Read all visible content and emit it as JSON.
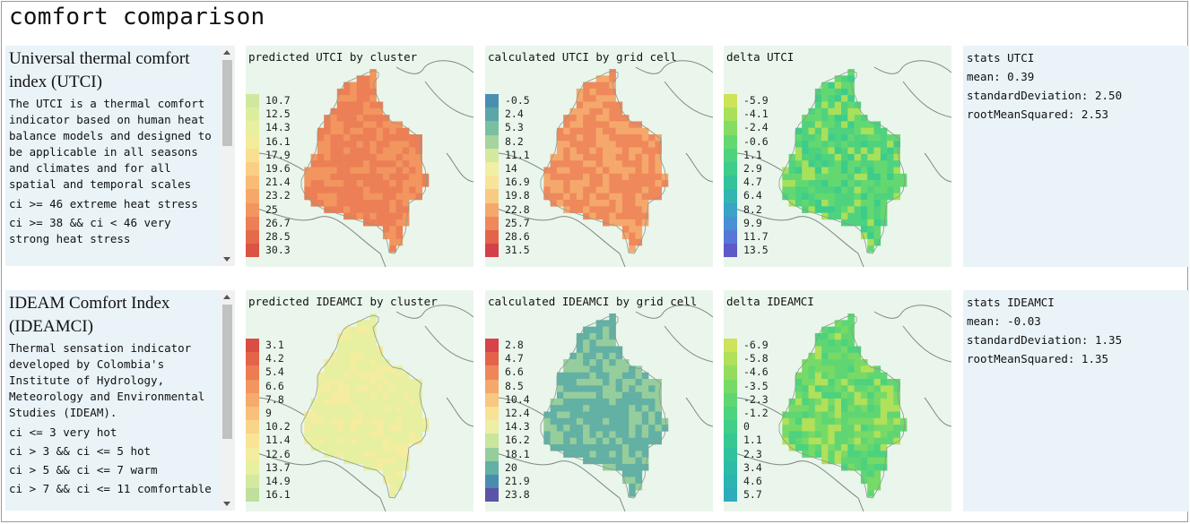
{
  "page_title": "comfort comparison",
  "rows": [
    {
      "info": {
        "heading": "Universal thermal comfort index (UTCI)",
        "description": "The UTCI is a thermal comfort indicator based on human heat balance models and designed to be applicable in all seasons and climates and for all spatial and temporal scales",
        "categories": [
          "ci >= 46 extreme heat stress",
          "ci >= 38 && ci < 46 very strong heat stress"
        ]
      },
      "panels": [
        {
          "title": "predicted UTCI by cluster",
          "kind": "pred",
          "legend": [
            {
              "label": "10.7",
              "color": "#cfe8a0"
            },
            {
              "label": "12.5",
              "color": "#dcee9e"
            },
            {
              "label": "14.3",
              "color": "#e8f0a0"
            },
            {
              "label": "16.1",
              "color": "#f2ec9c"
            },
            {
              "label": "17.9",
              "color": "#f8e093"
            },
            {
              "label": "19.6",
              "color": "#f9cf85"
            },
            {
              "label": "21.4",
              "color": "#f8bc77"
            },
            {
              "label": "23.2",
              "color": "#f6a86a"
            },
            {
              "label": "25",
              "color": "#f2955f"
            },
            {
              "label": "26.7",
              "color": "#ec7f55"
            },
            {
              "label": "28.5",
              "color": "#e46a4c"
            },
            {
              "label": "30.3",
              "color": "#da5344"
            }
          ]
        },
        {
          "title": "calculated UTCI by grid cell",
          "kind": "calc",
          "legend": [
            {
              "label": "-0.5",
              "color": "#4a8fb0"
            },
            {
              "label": "2.4",
              "color": "#5aa6a8"
            },
            {
              "label": "5.3",
              "color": "#7abfa0"
            },
            {
              "label": "8.2",
              "color": "#a6d49c"
            },
            {
              "label": "11.1",
              "color": "#d3e9a0"
            },
            {
              "label": "14",
              "color": "#f0efa4"
            },
            {
              "label": "16.9",
              "color": "#f9e39a"
            },
            {
              "label": "19.8",
              "color": "#f8cb83"
            },
            {
              "label": "22.8",
              "color": "#f5a86b"
            },
            {
              "label": "25.7",
              "color": "#ef885b"
            },
            {
              "label": "28.6",
              "color": "#e3644a"
            },
            {
              "label": "31.5",
              "color": "#d3404a"
            }
          ]
        },
        {
          "title": "delta UTCI",
          "kind": "delta",
          "legend": [
            {
              "label": "-5.9",
              "color": "#cde35a"
            },
            {
              "label": "-4.1",
              "color": "#a9e05a"
            },
            {
              "label": "-2.4",
              "color": "#86dc62"
            },
            {
              "label": "-0.6",
              "color": "#64d870"
            },
            {
              "label": "1.1",
              "color": "#4fd27e"
            },
            {
              "label": "2.9",
              "color": "#3dcc8a"
            },
            {
              "label": "4.7",
              "color": "#33c29a"
            },
            {
              "label": "6.4",
              "color": "#34b5b0"
            },
            {
              "label": "8.2",
              "color": "#3aa3c6"
            },
            {
              "label": "9.9",
              "color": "#4a8ed6"
            },
            {
              "label": "11.7",
              "color": "#5677d6"
            },
            {
              "label": "13.5",
              "color": "#5e58c8"
            }
          ]
        }
      ],
      "stats": {
        "title": "stats UTCI",
        "mean": "mean: 0.39",
        "sd": "standardDeviation: 2.50",
        "rms": "rootMeanSquared: 2.53"
      }
    },
    {
      "info": {
        "heading": "IDEAM Comfort Index (IDEAMCI)",
        "description": "Thermal sensation indicator developed by Colombia's Institute of Hydrology, Meteorology and Environmental Studies (IDEAM).",
        "categories": [
          "ci <= 3 very hot",
          "ci > 3 && ci <= 5 hot",
          "ci > 5 && ci <= 7 warm",
          "ci > 7 && ci <= 11 comfortable"
        ]
      },
      "panels": [
        {
          "title": "predicted IDEAMCI by cluster",
          "kind": "pred",
          "legend": [
            {
              "label": "3.1",
              "color": "#da4d43"
            },
            {
              "label": "4.2",
              "color": "#e4644a"
            },
            {
              "label": "5.4",
              "color": "#ec7c53"
            },
            {
              "label": "6.6",
              "color": "#f2955f"
            },
            {
              "label": "7.8",
              "color": "#f6aa6b"
            },
            {
              "label": "9",
              "color": "#f8c07a"
            },
            {
              "label": "10.2",
              "color": "#f9d489"
            },
            {
              "label": "11.4",
              "color": "#f9e396"
            },
            {
              "label": "12.6",
              "color": "#f4ec9e"
            },
            {
              "label": "13.7",
              "color": "#e6f0a0"
            },
            {
              "label": "14.9",
              "color": "#d3e9a0"
            },
            {
              "label": "16.1",
              "color": "#bfe09c"
            }
          ]
        },
        {
          "title": "calculated IDEAMCI by grid cell",
          "kind": "calc",
          "legend": [
            {
              "label": "2.8",
              "color": "#d8424a"
            },
            {
              "label": "4.7",
              "color": "#e4624a"
            },
            {
              "label": "6.6",
              "color": "#ef865a"
            },
            {
              "label": "8.5",
              "color": "#f5a86b"
            },
            {
              "label": "10.4",
              "color": "#f8c780"
            },
            {
              "label": "12.4",
              "color": "#f9e196"
            },
            {
              "label": "14.3",
              "color": "#eeeea4"
            },
            {
              "label": "16.2",
              "color": "#c9e59e"
            },
            {
              "label": "18.1",
              "color": "#96cd9c"
            },
            {
              "label": "20",
              "color": "#63b0a4"
            },
            {
              "label": "21.9",
              "color": "#4a8cb0"
            },
            {
              "label": "23.8",
              "color": "#5b53a6"
            }
          ]
        },
        {
          "title": "delta IDEAMCI",
          "kind": "delta",
          "legend": [
            {
              "label": "-6.9",
              "color": "#cde35a"
            },
            {
              "label": "-5.8",
              "color": "#b1e05a"
            },
            {
              "label": "-4.6",
              "color": "#93dd5e"
            },
            {
              "label": "-3.5",
              "color": "#77da66"
            },
            {
              "label": "-2.3",
              "color": "#60d672"
            },
            {
              "label": "-1.2",
              "color": "#4dd27e"
            },
            {
              "label": "0",
              "color": "#40ce88"
            },
            {
              "label": "1.1",
              "color": "#36c892"
            },
            {
              "label": "2.3",
              "color": "#2fc29c"
            },
            {
              "label": "3.4",
              "color": "#2cbba6"
            },
            {
              "label": "4.6",
              "color": "#2bb4b0"
            },
            {
              "label": "5.7",
              "color": "#2eacbc"
            }
          ]
        }
      ],
      "stats": {
        "title": "stats IDEAMCI",
        "mean": "mean: -0.03",
        "sd": "standardDeviation: 1.35",
        "rms": "rootMeanSquared: 1.35"
      }
    }
  ]
}
